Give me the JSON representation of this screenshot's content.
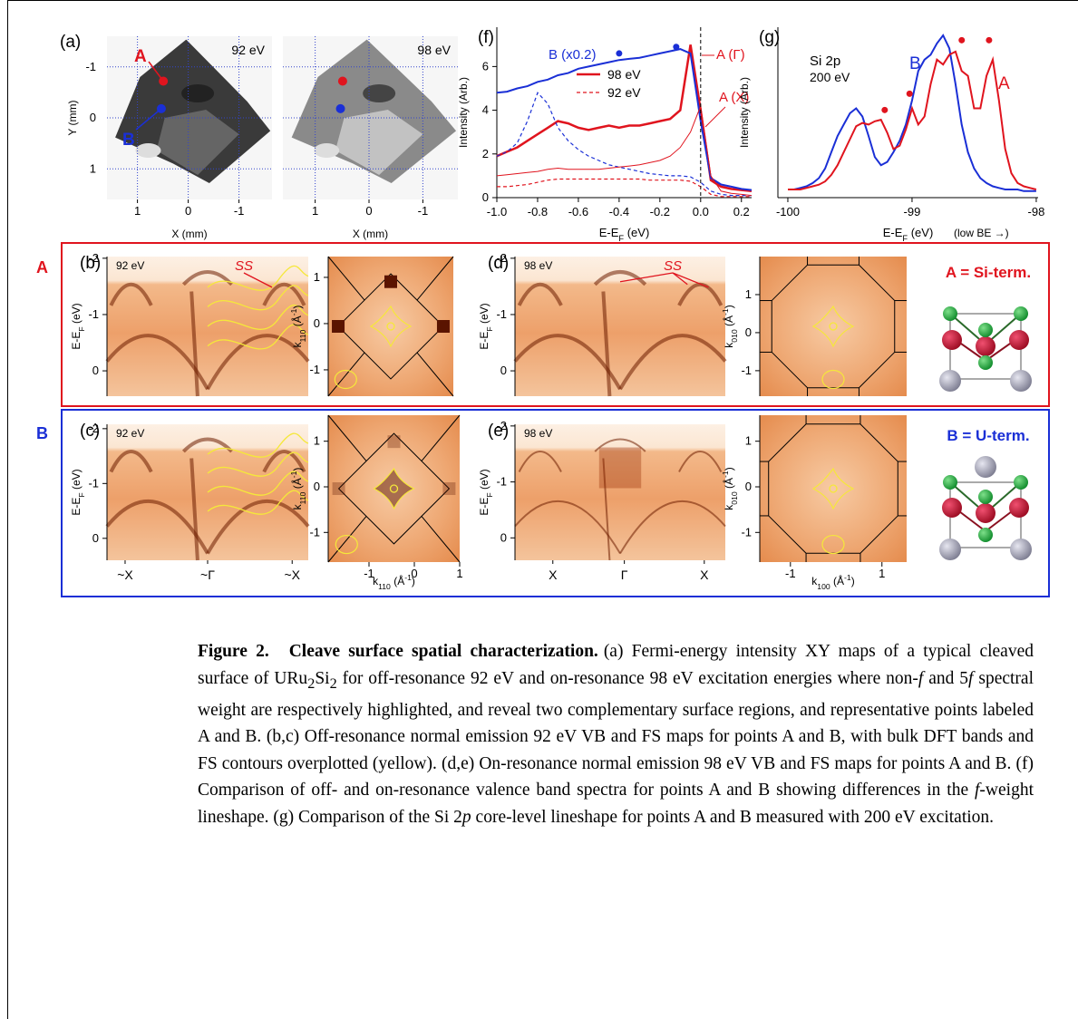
{
  "chart_data": [
    {
      "type": "line",
      "title": "(f)",
      "ylabel": "Intensity (Arb.)",
      "xlabel": [
        "E-E",
        "F",
        " (eV)"
      ],
      "x": [
        -1.0,
        -0.95,
        -0.9,
        -0.85,
        -0.8,
        -0.75,
        -0.7,
        -0.65,
        -0.6,
        -0.55,
        -0.5,
        -0.45,
        -0.4,
        -0.35,
        -0.3,
        -0.25,
        -0.2,
        -0.15,
        -0.1,
        -0.05,
        0.0,
        0.05,
        0.1,
        0.15,
        0.2,
        0.25
      ],
      "xlim": [
        -1.0,
        0.25
      ],
      "ylim": [
        0,
        7.8
      ],
      "xticks": [
        {
          "value": -1.0,
          "label": "-1.0"
        },
        -0.8,
        -0.6,
        -0.4,
        -0.2,
        {
          "value": 0.0,
          "label": "0.0"
        },
        0.2
      ],
      "yticks": [
        0,
        2,
        4,
        6
      ],
      "series": [
        {
          "name": "98 eV",
          "color": "#e0141e",
          "linewidth": 2.5,
          "dashed": false,
          "values": [
            1.9,
            2.1,
            2.3,
            2.6,
            2.9,
            3.2,
            3.5,
            3.4,
            3.2,
            3.1,
            3.2,
            3.3,
            3.2,
            3.3,
            3.3,
            3.4,
            3.5,
            3.6,
            4.0,
            7.0,
            4.0,
            0.8,
            0.5,
            0.4,
            0.35,
            0.3
          ]
        },
        {
          "name": "92 eV",
          "color": "#e0141e",
          "linewidth": 1.2,
          "dashed": true,
          "values": [
            0.5,
            0.5,
            0.55,
            0.6,
            0.7,
            0.8,
            0.85,
            0.85,
            0.85,
            0.85,
            0.85,
            0.85,
            0.85,
            0.85,
            0.85,
            0.8,
            0.8,
            0.8,
            0.8,
            0.75,
            0.5,
            0.15,
            0.05,
            0.05,
            0.05,
            0.05
          ]
        },
        {
          "color": "#1a2fd6",
          "linewidth": 2,
          "dashed": false,
          "values": [
            4.8,
            4.85,
            5.0,
            5.1,
            5.3,
            5.4,
            5.6,
            5.7,
            5.9,
            6.0,
            6.1,
            6.2,
            6.3,
            6.35,
            6.4,
            6.5,
            6.6,
            6.7,
            6.8,
            6.6,
            3.5,
            0.9,
            0.6,
            0.5,
            0.4,
            0.35
          ]
        },
        {
          "color": "#1a2fd6",
          "linewidth": 1.2,
          "dashed": true,
          "values": [
            1.9,
            2.1,
            2.5,
            3.5,
            4.8,
            4.3,
            3.2,
            2.6,
            2.2,
            1.9,
            1.7,
            1.5,
            1.4,
            1.3,
            1.2,
            1.1,
            1.05,
            1.0,
            1.0,
            0.95,
            0.7,
            0.3,
            0.15,
            0.1,
            0.1,
            0.1
          ]
        },
        {
          "color": "#e0141e",
          "linewidth": 1,
          "dashed": false,
          "values": [
            1.0,
            1.05,
            1.1,
            1.15,
            1.2,
            1.3,
            1.35,
            1.3,
            1.3,
            1.3,
            1.3,
            1.35,
            1.4,
            1.45,
            1.5,
            1.6,
            1.7,
            1.9,
            2.3,
            3.0,
            4.2,
            1.0,
            0.3,
            0.2,
            0.15,
            0.1
          ]
        }
      ],
      "markers": {
        "x": [
          -0.4,
          -0.12
        ],
        "y": [
          6.6,
          6.9
        ],
        "color": "#1a2fd6"
      },
      "annotations": [
        "B (x0.2)",
        "A (Γ)",
        "A (X)"
      ]
    },
    {
      "type": "line",
      "title": "(g)",
      "ylabel": "Intensity (Arb.)",
      "xlabel": [
        "E-E",
        "F",
        " (eV)"
      ],
      "xlabel_note": "(low BE →)",
      "x": [
        -100.0,
        -99.95,
        -99.9,
        -99.85,
        -99.8,
        -99.75,
        -99.7,
        -99.65,
        -99.6,
        -99.55,
        -99.5,
        -99.45,
        -99.4,
        -99.35,
        -99.3,
        -99.25,
        -99.2,
        -99.15,
        -99.1,
        -99.05,
        -99.0,
        -98.95,
        -98.9,
        -98.85,
        -98.8,
        -98.75,
        -98.7,
        -98.65,
        -98.6,
        -98.55,
        -98.5,
        -98.45,
        -98.4,
        -98.35,
        -98.3,
        -98.25,
        -98.2,
        -98.15,
        -98.1,
        -98.05,
        -98.0
      ],
      "xlim": [
        -100.08,
        -97.985
      ],
      "ylim": [
        0,
        1.05
      ],
      "xticks": [
        -100,
        -99,
        -98
      ],
      "series": [
        {
          "name": "B",
          "color": "#1a2fd6",
          "linewidth": 2,
          "dashed": false,
          "values": [
            0.05,
            0.05,
            0.06,
            0.07,
            0.09,
            0.12,
            0.18,
            0.28,
            0.38,
            0.45,
            0.52,
            0.55,
            0.5,
            0.38,
            0.25,
            0.2,
            0.22,
            0.28,
            0.35,
            0.45,
            0.6,
            0.78,
            0.85,
            0.88,
            0.95,
            1.0,
            0.92,
            0.7,
            0.45,
            0.28,
            0.18,
            0.12,
            0.09,
            0.07,
            0.06,
            0.05,
            0.05,
            0.05,
            0.04,
            0.04,
            0.04
          ]
        },
        {
          "name": "A",
          "color": "#e0141e",
          "linewidth": 2,
          "dashed": false,
          "values": [
            0.05,
            0.05,
            0.05,
            0.06,
            0.07,
            0.08,
            0.1,
            0.14,
            0.2,
            0.28,
            0.36,
            0.44,
            0.46,
            0.45,
            0.47,
            0.48,
            0.4,
            0.3,
            0.32,
            0.42,
            0.55,
            0.45,
            0.5,
            0.7,
            0.85,
            0.82,
            0.88,
            0.9,
            0.78,
            0.75,
            0.55,
            0.55,
            0.75,
            0.85,
            0.6,
            0.3,
            0.15,
            0.09,
            0.07,
            0.06,
            0.05
          ]
        }
      ],
      "markers": {
        "x": [
          -99.22,
          -99.02,
          -98.6,
          -98.38
        ],
        "y": [
          0.54,
          0.64,
          0.97,
          0.97
        ],
        "color": "#e0141e"
      },
      "annotations": [
        "Si 2p",
        "200 eV"
      ]
    }
  ],
  "figure": {
    "a": {
      "label": "(a)",
      "maps": [
        {
          "energy": "92 eV"
        },
        {
          "energy": "98 eV"
        }
      ],
      "xlim": [
        1.6,
        -1.65
      ],
      "ylim": [
        -1.6,
        1.6
      ],
      "xticks": [
        1,
        0,
        -1
      ],
      "yticks": [
        -1,
        0,
        1
      ],
      "xlabel": "X (mm)",
      "ylabel": "Y (mm)",
      "points": [
        {
          "name": "A",
          "color": "#e0141e",
          "x": 0.49,
          "y": -0.72
        },
        {
          "name": "B",
          "color": "#1a2fd6",
          "x": 0.53,
          "y": -0.18
        }
      ]
    },
    "rows": [
      {
        "label": "A",
        "term": "A = Si-term.",
        "color": "#e0141e"
      },
      {
        "label": "B",
        "term": "B = U-term.",
        "color": "#1a2fd6"
      }
    ],
    "vb_ylabel": [
      "E-E",
      "F",
      " (eV)"
    ],
    "vb": [
      {
        "label": "(b)",
        "energy": "92 eV",
        "ylim": [
          -2.03,
          0.45
        ],
        "yticks": [
          0,
          -1,
          -2
        ],
        "annotation": "SS"
      },
      {
        "label": "(d)",
        "energy": "98 eV",
        "ylim": [
          -2.03,
          0.45
        ],
        "yticks": [
          0,
          -1,
          -2
        ],
        "annotation": "SS"
      },
      {
        "label": "(c)",
        "energy": "92 eV",
        "ylim": [
          -2.08,
          0.4
        ],
        "yticks": [
          0,
          -1,
          -2
        ],
        "xticklabels": [
          "~X",
          "~Γ",
          "~X"
        ]
      },
      {
        "label": "(e)",
        "energy": "98 eV",
        "ylim": [
          -2.03,
          0.4
        ],
        "yticks": [
          0,
          -1,
          -2
        ],
        "xticklabels": [
          "X",
          "Γ",
          "X"
        ]
      }
    ],
    "fs": [
      {
        "ylim": [
          1.45,
          -1.57
        ],
        "yticks": [
          1,
          0,
          -1
        ],
        "ylabel": [
          "k",
          "110",
          " (Å",
          "-1",
          ")"
        ]
      },
      {
        "ylim": [
          2.0,
          -1.67
        ],
        "yticks": [
          1,
          0,
          -1
        ],
        "ylabel": [
          "k",
          "010",
          " (Å",
          "-1",
          ")"
        ]
      },
      {
        "ylim": [
          1.57,
          -1.65
        ],
        "yticks": [
          1,
          0,
          -1
        ],
        "xlim": [
          -1.9,
          1.0
        ],
        "xticks": [
          -1,
          0,
          1
        ],
        "ylabel": [
          "k",
          "110",
          " (Å",
          "-1",
          ")"
        ],
        "xlabel": [
          "k",
          "110",
          " (Å",
          "-1",
          ")"
        ]
      },
      {
        "ylim": [
          1.57,
          -1.65
        ],
        "yticks": [
          1,
          0,
          -1
        ],
        "xlim": [
          -1.67,
          1.54
        ],
        "xticks": [
          -1,
          1
        ],
        "ylabel": [
          "k",
          "010",
          " (Å",
          "-1",
          ")"
        ],
        "xlabel": [
          "k",
          "100",
          " (Å",
          "-1",
          ")"
        ]
      }
    ]
  },
  "caption": {
    "label": "Figure 2.",
    "title": "Cleave surface spatial characterization.",
    "body": [
      "(a) Fermi-energy intensity XY maps of a typical cleaved surface of URu",
      "2",
      "Si",
      "2",
      " for off-resonance 92 eV and on-resonance 98 eV excitation energies where non-",
      "f",
      " and 5",
      "f",
      " spectral weight are respectively highlighted, and reveal two complementary surface regions, and representative points labeled A and B. (b,c) Off-resonance normal emission 92 eV VB and FS maps for points A and B, with bulk DFT bands and FS contours overplotted (yellow). (d,e) On-resonance normal emission 98 eV VB and FS maps for points A and B. (f) Comparison of off- and on-resonance valence band spectra for points A and B showing differences in the ",
      "f",
      "-weight lineshape. (g) Comparison of the Si 2",
      "p",
      " core-level lineshape for points A and B measured with 200 eV excitation."
    ]
  }
}
